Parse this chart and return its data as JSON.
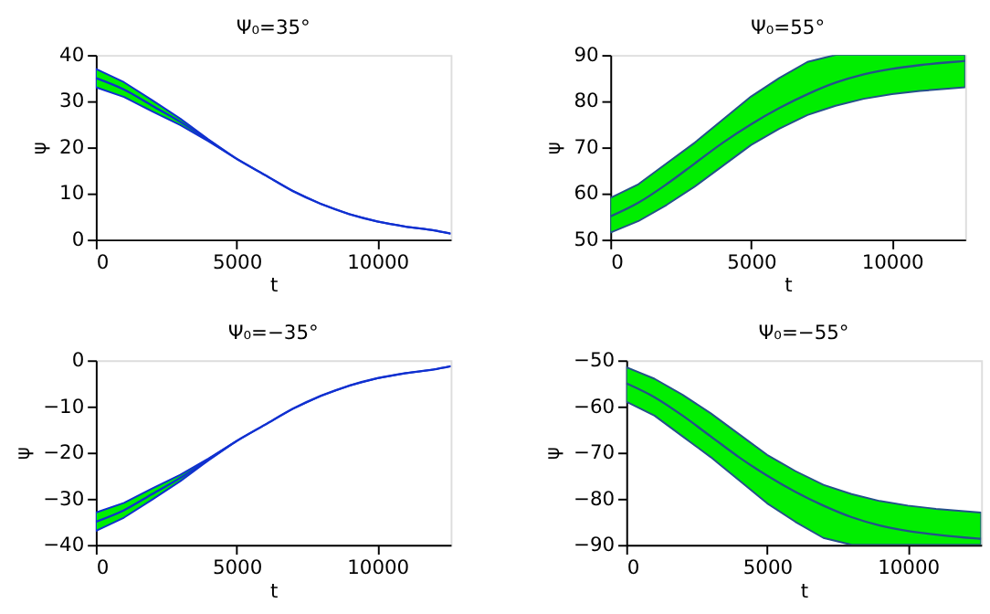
{
  "chart_data": [
    {
      "type": "line",
      "title": "Ψ₀=35°",
      "xlabel": "t",
      "ylabel": "ψ",
      "xlim": [
        0,
        12600
      ],
      "xticks": [
        0,
        5000,
        10000
      ],
      "ylim": [
        0,
        40
      ],
      "yticks": [
        0,
        10,
        20,
        30,
        40
      ],
      "grid": false,
      "x": [
        0,
        1000,
        2000,
        3000,
        4000,
        5000,
        6000,
        7000,
        8000,
        9000,
        10000,
        11000,
        12000,
        12600
      ],
      "series": [
        {
          "color": "#1030d0",
          "values": [
            35,
            32.5,
            29,
            25.5,
            21.5,
            17.5,
            14,
            10.5,
            7.7,
            5.5,
            3.9,
            2.8,
            2,
            1.3
          ],
          "lower": [
            33,
            30.9,
            27.8,
            24.8,
            21.3,
            17.5,
            14,
            10.5,
            7.7,
            5.5,
            3.9,
            2.8,
            2,
            1.3
          ],
          "upper": [
            37,
            34.1,
            30.2,
            26.2,
            21.7,
            17.5,
            14,
            10.5,
            7.7,
            5.5,
            3.9,
            2.8,
            2,
            1.3
          ]
        }
      ]
    },
    {
      "type": "line",
      "title": "Ψ₀=55°",
      "xlabel": "t",
      "ylabel": "ψ",
      "xlim": [
        0,
        12600
      ],
      "xticks": [
        0,
        5000,
        10000
      ],
      "ylim": [
        50,
        90
      ],
      "yticks": [
        50,
        60,
        70,
        80,
        90
      ],
      "grid": false,
      "x": [
        0,
        1000,
        2000,
        3000,
        4000,
        5000,
        6000,
        7000,
        8000,
        9000,
        10000,
        11000,
        12000,
        12600
      ],
      "series": [
        {
          "color": "#24508a",
          "values": [
            55,
            58,
            62,
            66.5,
            71,
            75,
            78.5,
            81.5,
            84,
            85.8,
            87,
            87.8,
            88.4,
            88.7
          ],
          "lower": [
            51.5,
            54,
            57.5,
            61.5,
            66,
            70.5,
            74,
            77,
            79,
            80.5,
            81.5,
            82.2,
            82.7,
            83
          ],
          "upper": [
            59,
            62,
            66.5,
            71,
            76,
            81,
            85,
            88.5,
            90,
            90,
            90,
            90,
            90,
            90
          ]
        }
      ]
    },
    {
      "type": "line",
      "title": "Ψ₀=−35°",
      "xlabel": "t",
      "ylabel": "ψ",
      "xlim": [
        0,
        12600
      ],
      "xticks": [
        0,
        5000,
        10000
      ],
      "ylim": [
        -40,
        0
      ],
      "yticks": [
        {
          "value": -40,
          "label": "−40"
        },
        {
          "value": -30,
          "label": "−30"
        },
        {
          "value": -20,
          "label": "−20"
        },
        {
          "value": -10,
          "label": "−10"
        },
        0
      ],
      "grid": false,
      "x": [
        0,
        1000,
        2000,
        3000,
        4000,
        5000,
        6000,
        7000,
        8000,
        9000,
        10000,
        11000,
        12000,
        12600
      ],
      "series": [
        {
          "color": "#1030d0",
          "values": [
            -35,
            -32.5,
            -29,
            -25.5,
            -21.5,
            -17.5,
            -14,
            -10.5,
            -7.7,
            -5.5,
            -3.9,
            -2.8,
            -2,
            -1.3
          ],
          "lower": [
            -37,
            -34.1,
            -30.2,
            -26.2,
            -21.7,
            -17.5,
            -14,
            -10.5,
            -7.7,
            -5.5,
            -3.9,
            -2.8,
            -2,
            -1.3
          ],
          "upper": [
            -33,
            -30.9,
            -27.8,
            -24.8,
            -21.3,
            -17.5,
            -14,
            -10.5,
            -7.7,
            -5.5,
            -3.9,
            -2.8,
            -2,
            -1.3
          ]
        }
      ]
    },
    {
      "type": "line",
      "title": "Ψ₀=−55°",
      "xlabel": "t",
      "ylabel": "ψ",
      "xlim": [
        0,
        12600
      ],
      "xticks": [
        0,
        5000,
        10000
      ],
      "ylim": [
        -90,
        -50
      ],
      "yticks": [
        {
          "value": -90,
          "label": "−90"
        },
        {
          "value": -80,
          "label": "−80"
        },
        {
          "value": -70,
          "label": "−70"
        },
        {
          "value": -60,
          "label": "−60"
        },
        {
          "value": -50,
          "label": "−50"
        }
      ],
      "grid": false,
      "x": [
        0,
        1000,
        2000,
        3000,
        4000,
        5000,
        6000,
        7000,
        8000,
        9000,
        10000,
        11000,
        12000,
        12600
      ],
      "series": [
        {
          "color": "#24508a",
          "values": [
            -55,
            -58,
            -62,
            -66.5,
            -71,
            -75,
            -78.5,
            -81.5,
            -84,
            -85.8,
            -87,
            -87.8,
            -88.4,
            -88.7
          ],
          "lower": [
            -59,
            -62,
            -66.5,
            -71,
            -76,
            -81,
            -85,
            -88.5,
            -90,
            -90,
            -90,
            -90,
            -90,
            -90
          ],
          "upper": [
            -51.5,
            -54,
            -57.5,
            -61.5,
            -66,
            -70.5,
            -74,
            -77,
            -79,
            -80.5,
            -81.5,
            -82.2,
            -82.7,
            -83
          ]
        }
      ]
    }
  ]
}
